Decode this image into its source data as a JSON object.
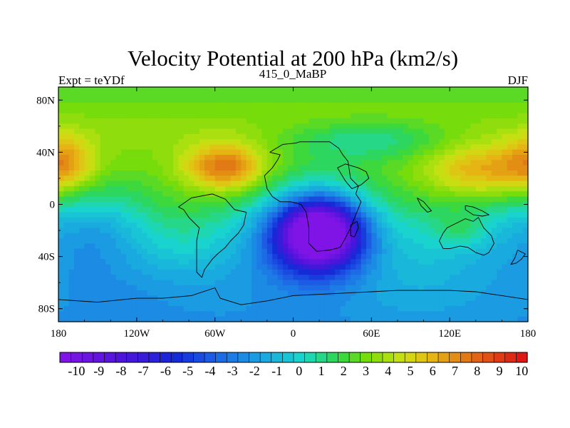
{
  "chart_data": {
    "type": "heatmap",
    "title": "Velocity Potential at 200 hPa (km2/s)",
    "left_label": "Expt = teYDf",
    "center_label": "415_0_MaBP",
    "right_label": "DJF",
    "xlim": [
      -180,
      180
    ],
    "ylim": [
      -90,
      90
    ],
    "x_ticks": [
      {
        "value": -180,
        "label": "180"
      },
      {
        "value": -120,
        "label": "120W"
      },
      {
        "value": -60,
        "label": "60W"
      },
      {
        "value": 0,
        "label": "0"
      },
      {
        "value": 60,
        "label": "60E"
      },
      {
        "value": 120,
        "label": "120E"
      },
      {
        "value": 180,
        "label": "180"
      }
    ],
    "y_ticks": [
      {
        "value": 80,
        "label": "80N"
      },
      {
        "value": 40,
        "label": "40N"
      },
      {
        "value": 0,
        "label": "0"
      },
      {
        "value": -40,
        "label": "40S"
      },
      {
        "value": -80,
        "label": "80S"
      }
    ],
    "colorbar": {
      "min": -10.5,
      "max": 10.5,
      "step": 0.5,
      "tick_labels": [
        "-10",
        "-9",
        "-8",
        "-7",
        "-6",
        "-5",
        "-4",
        "-3",
        "-2",
        "-1",
        "0",
        "1",
        "2",
        "3",
        "4",
        "5",
        "6",
        "7",
        "8",
        "9",
        "10"
      ]
    },
    "field": {
      "background": 2.7,
      "latitude_gradient": -0.048,
      "centers": [
        {
          "lon": 20,
          "lat": -22,
          "amp": -12.5,
          "sx": 22,
          "sy": 18
        },
        {
          "lon": 12,
          "lat": -25,
          "amp": -4.0,
          "sx": 45,
          "sy": 32
        },
        {
          "lon": -52,
          "lat": 28,
          "amp": 5.0,
          "sx": 22,
          "sy": 13
        },
        {
          "lon": 145,
          "lat": 25,
          "amp": 3.8,
          "sx": 32,
          "sy": 15
        },
        {
          "lon": -175,
          "lat": 32,
          "amp": 3.0,
          "sx": 16,
          "sy": 15
        },
        {
          "lon": -150,
          "lat": -20,
          "amp": -2.8,
          "sx": 30,
          "sy": 25
        },
        {
          "lon": 148,
          "lat": -22,
          "amp": -1.8,
          "sx": 35,
          "sy": 30
        },
        {
          "lon": 130,
          "lat": -20,
          "amp": 1.6,
          "sx": 15,
          "sy": 10
        },
        {
          "lon": 60,
          "lat": 50,
          "amp": -2.4,
          "sx": 45,
          "sy": 12
        },
        {
          "lon": -120,
          "lat": -65,
          "amp": -1.2,
          "sx": 60,
          "sy": 20
        }
      ]
    },
    "coastlines": [
      {
        "name": "africa-europe",
        "points": [
          [
            -18,
            40
          ],
          [
            -8,
            46
          ],
          [
            2,
            47
          ],
          [
            5,
            48
          ],
          [
            18,
            48
          ],
          [
            28,
            48
          ],
          [
            35,
            43
          ],
          [
            38,
            38
          ],
          [
            42,
            33
          ],
          [
            44,
            20
          ],
          [
            50,
            14
          ],
          [
            48,
            8
          ],
          [
            52,
            2
          ],
          [
            48,
            -8
          ],
          [
            44,
            -18
          ],
          [
            40,
            -26
          ],
          [
            36,
            -33
          ],
          [
            28,
            -35
          ],
          [
            18,
            -36
          ],
          [
            12,
            -30
          ],
          [
            12,
            -18
          ],
          [
            10,
            -6
          ],
          [
            6,
            0
          ],
          [
            -2,
            2
          ],
          [
            -10,
            2
          ],
          [
            -16,
            6
          ],
          [
            -20,
            12
          ],
          [
            -22,
            22
          ],
          [
            -16,
            28
          ],
          [
            -12,
            34
          ],
          [
            -10,
            38
          ],
          [
            -18,
            40
          ]
        ]
      },
      {
        "name": "south-america",
        "points": [
          [
            -88,
            -2
          ],
          [
            -78,
            5
          ],
          [
            -62,
            8
          ],
          [
            -52,
            4
          ],
          [
            -45,
            -4
          ],
          [
            -36,
            -6
          ],
          [
            -38,
            -16
          ],
          [
            -42,
            -22
          ],
          [
            -48,
            -28
          ],
          [
            -52,
            -33
          ],
          [
            -58,
            -38
          ],
          [
            -62,
            -42
          ],
          [
            -68,
            -50
          ],
          [
            -70,
            -56
          ],
          [
            -74,
            -52
          ],
          [
            -74,
            -38
          ],
          [
            -74,
            -28
          ],
          [
            -72,
            -18
          ],
          [
            -80,
            -10
          ],
          [
            -84,
            -4
          ],
          [
            -88,
            -2
          ]
        ]
      },
      {
        "name": "australia",
        "points": [
          [
            115,
            -22
          ],
          [
            118,
            -18
          ],
          [
            126,
            -14
          ],
          [
            132,
            -11
          ],
          [
            138,
            -13
          ],
          [
            142,
            -10
          ],
          [
            146,
            -18
          ],
          [
            152,
            -24
          ],
          [
            154,
            -30
          ],
          [
            150,
            -37
          ],
          [
            146,
            -39
          ],
          [
            140,
            -37
          ],
          [
            134,
            -33
          ],
          [
            128,
            -32
          ],
          [
            120,
            -34
          ],
          [
            115,
            -34
          ],
          [
            112,
            -28
          ],
          [
            115,
            -22
          ]
        ]
      },
      {
        "name": "antarctica",
        "points": [
          [
            -180,
            -73
          ],
          [
            -150,
            -75
          ],
          [
            -120,
            -72
          ],
          [
            -100,
            -72
          ],
          [
            -78,
            -70
          ],
          [
            -60,
            -64
          ],
          [
            -56,
            -72
          ],
          [
            -40,
            -77
          ],
          [
            -20,
            -74
          ],
          [
            0,
            -70
          ],
          [
            20,
            -69
          ],
          [
            40,
            -68
          ],
          [
            60,
            -67
          ],
          [
            80,
            -66
          ],
          [
            100,
            -66
          ],
          [
            120,
            -66
          ],
          [
            140,
            -67
          ],
          [
            160,
            -70
          ],
          [
            180,
            -73
          ]
        ]
      },
      {
        "name": "madagascar",
        "points": [
          [
            44,
            -16
          ],
          [
            49,
            -13
          ],
          [
            50,
            -18
          ],
          [
            47,
            -25
          ],
          [
            44,
            -24
          ],
          [
            44,
            -16
          ]
        ]
      },
      {
        "name": "new-guinea",
        "points": [
          [
            132,
            -1
          ],
          [
            138,
            -2
          ],
          [
            145,
            -5
          ],
          [
            150,
            -8
          ],
          [
            145,
            -9
          ],
          [
            138,
            -8
          ],
          [
            132,
            -4
          ],
          [
            132,
            -1
          ]
        ]
      },
      {
        "name": "sumatra",
        "points": [
          [
            95,
            5
          ],
          [
            100,
            2
          ],
          [
            106,
            -5
          ],
          [
            103,
            -6
          ],
          [
            98,
            -1
          ],
          [
            95,
            5
          ]
        ]
      },
      {
        "name": "new-zealand",
        "points": [
          [
            172,
            -35
          ],
          [
            178,
            -38
          ],
          [
            175,
            -42
          ],
          [
            171,
            -45
          ],
          [
            167,
            -46
          ],
          [
            170,
            -41
          ],
          [
            172,
            -35
          ]
        ]
      },
      {
        "name": "arabia-red-sea",
        "points": [
          [
            34,
            28
          ],
          [
            40,
            18
          ],
          [
            45,
            12
          ],
          [
            52,
            15
          ],
          [
            58,
            20
          ],
          [
            56,
            25
          ],
          [
            50,
            28
          ],
          [
            40,
            31
          ],
          [
            34,
            28
          ]
        ]
      }
    ]
  }
}
